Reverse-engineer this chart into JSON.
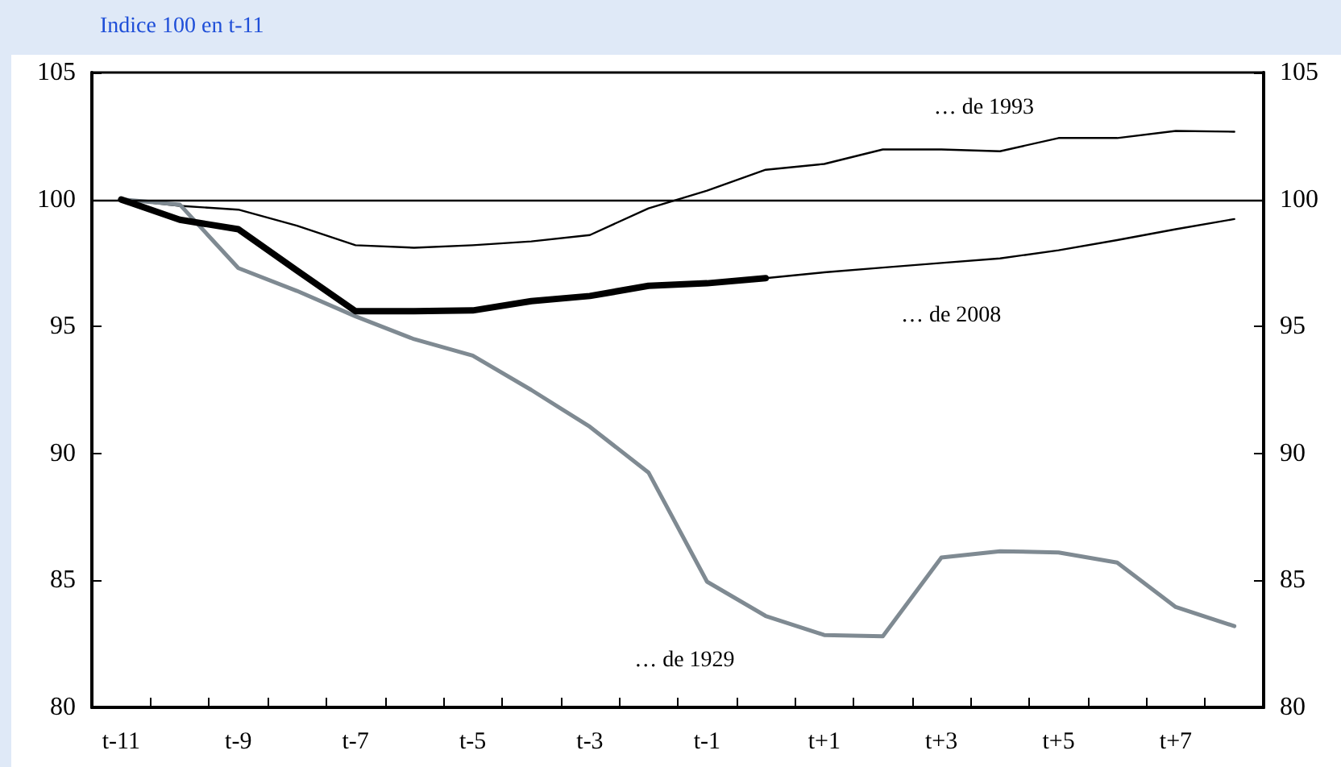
{
  "chart_data": {
    "type": "line",
    "title": "Indice 100 en t-11",
    "categories": [
      "t-11",
      null,
      "t-9",
      null,
      "t-7",
      null,
      "t-5",
      null,
      "t-3",
      null,
      "t-1",
      null,
      "t+1",
      null,
      "t+3",
      null,
      "t+5",
      null,
      "t+7",
      null
    ],
    "series": [
      {
        "name": "… de 1993",
        "color": "#000000",
        "values": [
          100,
          99.75,
          99.6,
          98.97,
          98.2,
          98.1,
          98.2,
          98.35,
          98.6,
          99.65,
          100.35,
          101.17,
          101.4,
          101.97,
          101.97,
          101.9,
          102.42,
          102.42,
          102.7,
          102.67
        ]
      },
      {
        "name": "… de 2008",
        "color": "#000000",
        "values": [
          null,
          null,
          null,
          null,
          null,
          null,
          null,
          null,
          null,
          null,
          null,
          96.9,
          97.13,
          97.32,
          97.5,
          97.68,
          98.0,
          98.4,
          98.83,
          99.23
        ]
      },
      {
        "color": "#000000",
        "values": [
          100,
          99.2,
          98.83,
          97.2,
          95.6,
          95.6,
          95.63,
          96.0,
          96.2,
          96.6,
          96.7,
          96.9,
          null,
          null,
          null,
          null,
          null,
          null,
          null,
          null
        ]
      },
      {
        "name": "… de 1929",
        "color": "#7f8a92",
        "values": [
          100,
          99.8,
          97.3,
          96.4,
          95.4,
          94.5,
          93.85,
          92.5,
          91.05,
          89.25,
          84.95,
          83.6,
          82.85,
          82.8,
          85.9,
          86.15,
          86.1,
          85.7,
          83.95,
          83.2
        ]
      }
    ],
    "ylim": [
      80,
      105
    ],
    "yticks": [
      80,
      85,
      90,
      95,
      100,
      105
    ],
    "y2lim": [
      80,
      105
    ],
    "y2ticks": [
      80,
      85,
      90,
      95,
      100,
      105
    ],
    "ref_lines": [
      {
        "axis": "y",
        "value": 100,
        "color": "#000000"
      }
    ],
    "grid": false,
    "legend": false,
    "marker": "none",
    "line_style": "solid"
  }
}
